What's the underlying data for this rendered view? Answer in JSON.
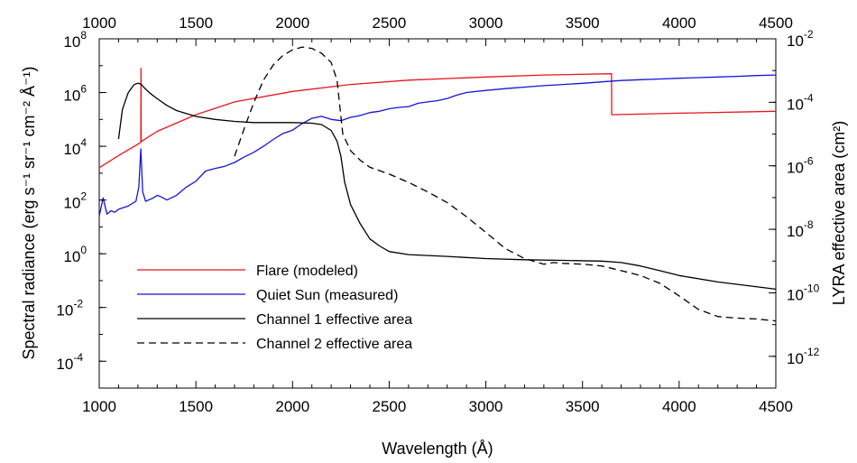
{
  "chart_data": {
    "type": "line",
    "title": "",
    "xlabel": "Wavelength (Å)",
    "ylabel_left": "Spectral radiance (erg s⁻¹ sr⁻¹ cm⁻² Å⁻¹)",
    "ylabel_right": "LYRA effective area (cm²)",
    "xlim": [
      1000,
      4500
    ],
    "ylim_left": [
      1e-05,
      100000000.0
    ],
    "ylim_right": [
      1e-13,
      0.01
    ],
    "yscale": "log",
    "grid": false,
    "legend_position": "lower-left",
    "x_ticks": [
      "1000",
      "1500",
      "2000",
      "2500",
      "3000",
      "3500",
      "4000",
      "4500"
    ],
    "y_left_ticks": [
      {
        "base": "10",
        "exp": "8",
        "value": 100000000.0
      },
      {
        "base": "10",
        "exp": "6",
        "value": 1000000.0
      },
      {
        "base": "10",
        "exp": "4",
        "value": 10000.0
      },
      {
        "base": "10",
        "exp": "2",
        "value": 100.0
      },
      {
        "base": "10",
        "exp": "0",
        "value": 1
      },
      {
        "base": "10",
        "exp": "-2",
        "value": 0.01
      },
      {
        "base": "10",
        "exp": "-4",
        "value": 0.0001
      }
    ],
    "y_right_ticks": [
      {
        "base": "10",
        "exp": "-2",
        "value": 0.01
      },
      {
        "base": "10",
        "exp": "-4",
        "value": 0.0001
      },
      {
        "base": "10",
        "exp": "-6",
        "value": 1e-06
      },
      {
        "base": "10",
        "exp": "-8",
        "value": 1e-08
      },
      {
        "base": "10",
        "exp": "-10",
        "value": 1e-10
      },
      {
        "base": "10",
        "exp": "-12",
        "value": 1e-12
      }
    ],
    "series": [
      {
        "name": "Flare (modeled)",
        "axis": "left",
        "color": "#e8151b",
        "dash": "solid",
        "x": [
          1000,
          1100,
          1200,
          1215,
          1216,
          1217,
          1300,
          1500,
          1700,
          2000,
          2300,
          2600,
          3000,
          3300,
          3650,
          3651,
          4000,
          4500
        ],
        "y": [
          1600.0,
          4500.0,
          12000.0,
          14000.0,
          8000000.0,
          15000.0,
          36000.0,
          150000.0,
          450000.0,
          1100000.0,
          2000000.0,
          2900000.0,
          3800000.0,
          4500000.0,
          5000000.0,
          150000.0,
          170000.0,
          200000.0
        ]
      },
      {
        "name": "Quiet Sun (measured)",
        "axis": "left",
        "color": "#1515d8",
        "dash": "solid",
        "x": [
          1000,
          1020,
          1040,
          1060,
          1080,
          1100,
          1150,
          1190,
          1205,
          1215,
          1225,
          1240,
          1280,
          1300,
          1320,
          1350,
          1400,
          1450,
          1500,
          1550,
          1600,
          1650,
          1700,
          1750,
          1800,
          1850,
          1900,
          1950,
          2000,
          2050,
          2100,
          2150,
          2200,
          2250,
          2300,
          2350,
          2400,
          2450,
          2500,
          2550,
          2600,
          2650,
          2700,
          2750,
          2800,
          2850,
          2900,
          3000,
          3100,
          3200,
          3300,
          3400,
          3500,
          3600,
          3700,
          3800,
          3900,
          4000,
          4100,
          4200,
          4300,
          4400,
          4500
        ],
        "y": [
          25,
          120,
          30,
          40,
          35,
          45,
          60,
          90,
          300,
          8000.0,
          200,
          90,
          120,
          150,
          130,
          100,
          150,
          300,
          500,
          1200,
          1500,
          1800,
          2500,
          4000,
          6000,
          10000.0,
          18000.0,
          30000.0,
          40000.0,
          70000.0,
          110000.0,
          130000.0,
          100000.0,
          90000.0,
          120000.0,
          140000.0,
          180000.0,
          200000.0,
          250000.0,
          280000.0,
          300000.0,
          400000.0,
          450000.0,
          500000.0,
          600000.0,
          800000.0,
          1000000.0,
          1200000.0,
          1400000.0,
          1600000.0,
          1800000.0,
          2000000.0,
          2200000.0,
          2500000.0,
          2800000.0,
          3000000.0,
          3200000.0,
          3400000.0,
          3600000.0,
          3800000.0,
          4000000.0,
          4300000.0,
          4500000.0
        ]
      },
      {
        "name": "Channel 1 effective area",
        "axis": "right",
        "color": "#000000",
        "dash": "solid",
        "x": [
          1100,
          1120,
          1150,
          1180,
          1200,
          1215,
          1230,
          1260,
          1300,
          1350,
          1400,
          1500,
          1600,
          1700,
          1800,
          1900,
          2000,
          2100,
          2150,
          2200,
          2230,
          2250,
          2270,
          2300,
          2350,
          2400,
          2450,
          2500,
          2600,
          2700,
          2800,
          3000,
          3200,
          3400,
          3600,
          3700,
          3800,
          3900,
          4000,
          4200,
          4500
        ],
        "y": [
          7e-06,
          6e-05,
          0.0002,
          0.00036,
          0.0004,
          0.00038,
          0.0003,
          0.0002,
          0.00013,
          8e-05,
          5.5e-05,
          3.6e-05,
          2.9e-05,
          2.5e-05,
          2.3e-05,
          2.3e-05,
          2.3e-05,
          2.2e-05,
          2e-05,
          1.3e-05,
          6e-06,
          2e-06,
          3e-07,
          6e-08,
          1.5e-08,
          5e-09,
          3e-09,
          2e-09,
          1.6e-09,
          1.5e-09,
          1.4e-09,
          1.2e-09,
          1.1e-09,
          1.05e-09,
          1e-09,
          9e-10,
          7e-10,
          5e-10,
          3.5e-10,
          2.2e-10,
          1.3e-10
        ]
      },
      {
        "name": "Channel 2 effective area",
        "axis": "right",
        "color": "#000000",
        "dash": "dashed",
        "x": [
          1700,
          1750,
          1800,
          1850,
          1900,
          1950,
          2000,
          2050,
          2100,
          2150,
          2200,
          2230,
          2260,
          2300,
          2350,
          2400,
          2500,
          2600,
          2700,
          2800,
          2900,
          3000,
          3100,
          3200,
          3300,
          3350,
          3400,
          3500,
          3600,
          3700,
          3800,
          3900,
          4000,
          4100,
          4200,
          4300,
          4400,
          4500
        ],
        "y": [
          2e-06,
          1.5e-05,
          0.0001,
          0.0005,
          0.0015,
          0.003,
          0.0045,
          0.0055,
          0.005,
          0.0035,
          0.0018,
          0.0005,
          1e-05,
          3e-06,
          1.5e-06,
          9e-07,
          5.5e-07,
          3e-07,
          1.5e-07,
          7e-08,
          2.5e-08,
          8e-09,
          2.5e-09,
          1.2e-09,
          8e-10,
          9e-10,
          8.5e-10,
          8e-10,
          7e-10,
          5e-10,
          3.5e-10,
          2e-10,
          8e-11,
          3e-11,
          1.8e-11,
          1.6e-11,
          1.5e-11,
          1.3e-11
        ]
      }
    ]
  }
}
